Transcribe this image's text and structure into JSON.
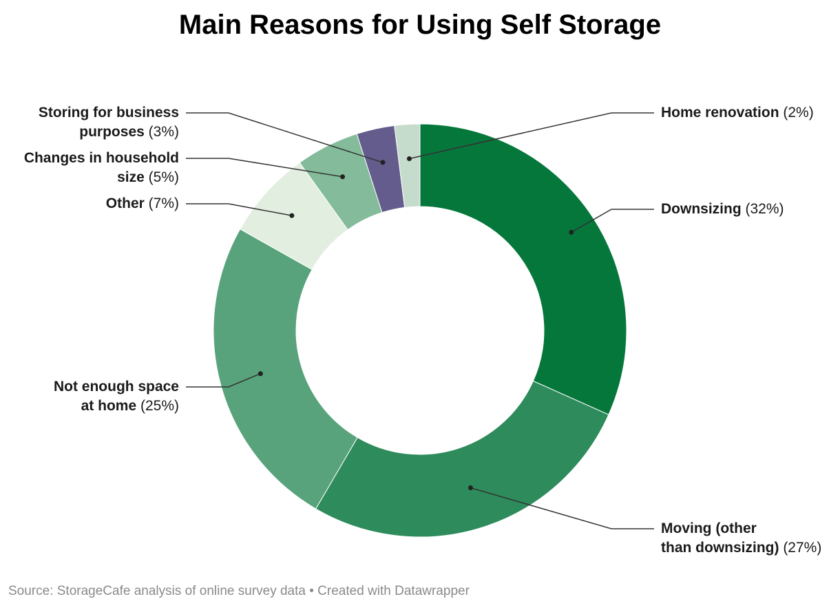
{
  "title": "Main Reasons for Using Self Storage",
  "source": "Source: StorageCafe analysis of online survey data • Created with Datawrapper",
  "chart_data": {
    "type": "pie",
    "style": "donut",
    "title": "Main Reasons for Using Self Storage",
    "slices": [
      {
        "label": "Downsizing",
        "value": 32,
        "pct_text": "(32%)",
        "color": "#06773b"
      },
      {
        "label": "Moving (other than downsizing)",
        "value": 27,
        "pct_text": "(27%)",
        "color": "#2e8b5b"
      },
      {
        "label": "Not enough space at home",
        "value": 25,
        "pct_text": "(25%)",
        "color": "#58a37b"
      },
      {
        "label": "Other",
        "value": 7,
        "pct_text": "(7%)",
        "color": "#e2efe0"
      },
      {
        "label": "Changes in household size",
        "value": 5,
        "pct_text": "(5%)",
        "color": "#84bb9b"
      },
      {
        "label": "Storing for business purposes",
        "value": 3,
        "pct_text": "(3%)",
        "color": "#635c8c"
      },
      {
        "label": "Home renovation",
        "value": 2,
        "pct_text": "(2%)",
        "color": "#c5dccd"
      }
    ]
  }
}
